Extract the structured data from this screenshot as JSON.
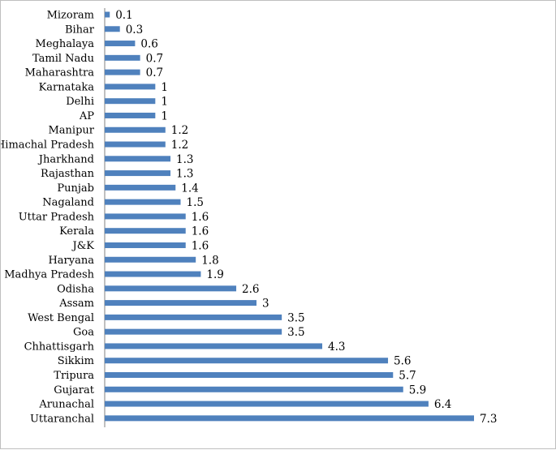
{
  "colors": {
    "bar": "#4f81bd",
    "axis": "#808080",
    "border": "#bfbfbf",
    "text": "#000000"
  },
  "chart_data": {
    "type": "bar",
    "orientation": "horizontal",
    "title": "",
    "xlabel": "",
    "ylabel": "",
    "grid": false,
    "legend": "none",
    "xlim": [
      0,
      7.5
    ],
    "categories": [
      "Mizoram",
      "Bihar",
      "Meghalaya",
      "Tamil Nadu",
      "Maharashtra",
      "Karnataka",
      "Delhi",
      "AP",
      "Manipur",
      "Himachal Pradesh",
      "Jharkhand",
      "Rajasthan",
      "Punjab",
      "Nagaland",
      "Uttar Pradesh",
      "Kerala",
      "J&K",
      "Haryana",
      "Madhya Pradesh",
      "Odisha",
      "Assam",
      "West Bengal",
      "Goa",
      "Chhattisgarh",
      "Sikkim",
      "Tripura",
      "Gujarat",
      "Arunachal",
      "Uttaranchal"
    ],
    "values": [
      0.1,
      0.3,
      0.6,
      0.7,
      0.7,
      1,
      1,
      1,
      1.2,
      1.2,
      1.3,
      1.3,
      1.4,
      1.5,
      1.6,
      1.6,
      1.6,
      1.8,
      1.9,
      2.6,
      3,
      3.5,
      3.5,
      4.3,
      5.6,
      5.7,
      5.9,
      6.4,
      7.3
    ],
    "value_labels": [
      "0.1",
      "0.3",
      "0.6",
      "0.7",
      "0.7",
      "1",
      "1",
      "1",
      "1.2",
      "1.2",
      "1.3",
      "1.3",
      "1.4",
      "1.5",
      "1.6",
      "1.6",
      "1.6",
      "1.8",
      "1.9",
      "2.6",
      "3",
      "3.5",
      "3.5",
      "4.3",
      "5.6",
      "5.7",
      "5.9",
      "6.4",
      "7.3"
    ]
  }
}
